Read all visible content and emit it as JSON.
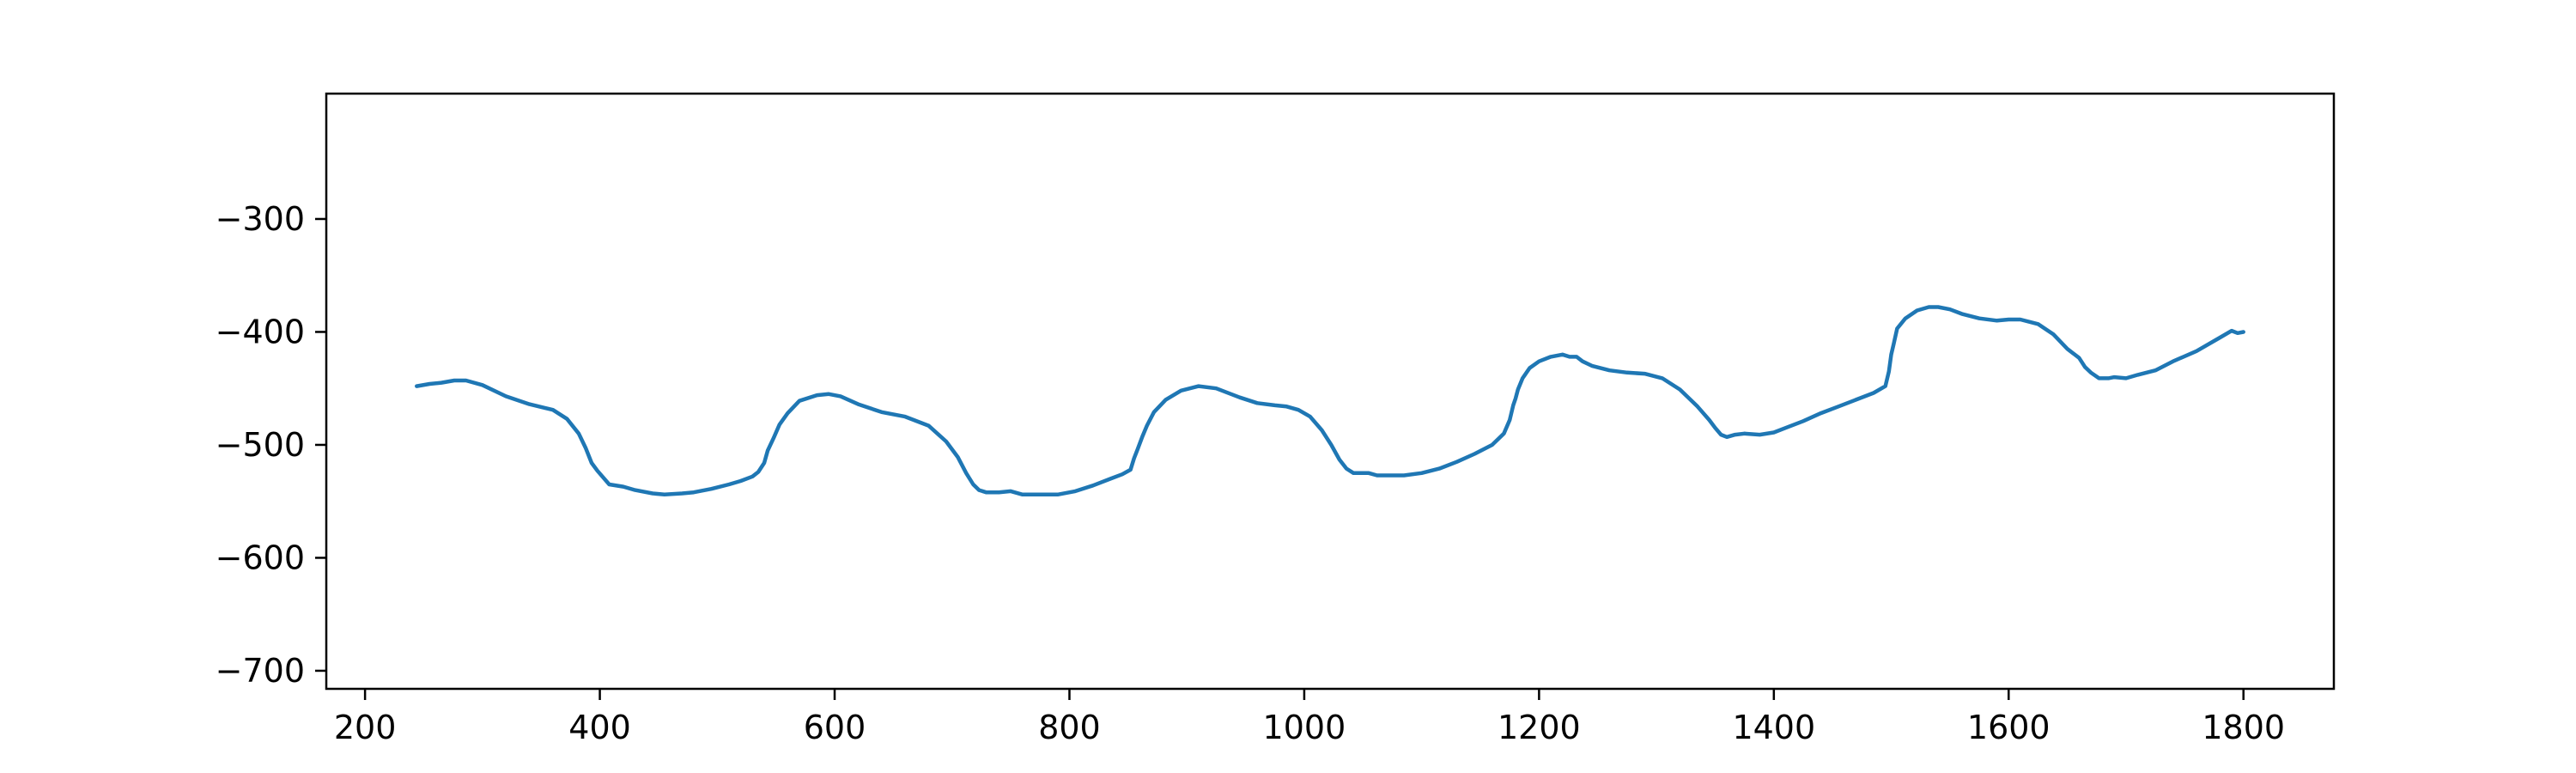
{
  "chart_data": {
    "type": "line",
    "title": "",
    "xlabel": "",
    "ylabel": "",
    "xlim": [
      167,
      1877
    ],
    "ylim": [
      -716,
      -189
    ],
    "xticks": [
      {
        "value": 200,
        "label": "200"
      },
      {
        "value": 400,
        "label": "400"
      },
      {
        "value": 600,
        "label": "600"
      },
      {
        "value": 800,
        "label": "800"
      },
      {
        "value": 1000,
        "label": "1000"
      },
      {
        "value": 1200,
        "label": "1200"
      },
      {
        "value": 1400,
        "label": "1400"
      },
      {
        "value": 1600,
        "label": "1600"
      },
      {
        "value": 1800,
        "label": "1800"
      }
    ],
    "yticks": [
      {
        "value": -300,
        "label": "−300"
      },
      {
        "value": -400,
        "label": "−400"
      },
      {
        "value": -500,
        "label": "−500"
      },
      {
        "value": -600,
        "label": "−600"
      },
      {
        "value": -700,
        "label": "−700"
      }
    ],
    "grid": false,
    "legend": "none",
    "series": [
      {
        "color": "#1f77b4",
        "x": [
          244,
          255,
          265,
          276,
          286,
          300,
          320,
          340,
          360,
          372,
          382,
          388,
          393,
          398,
          408,
          420,
          430,
          445,
          455,
          470,
          480,
          495,
          510,
          520,
          530,
          535,
          540,
          543,
          548,
          553,
          560,
          570,
          585,
          595,
          605,
          620,
          640,
          660,
          680,
          695,
          705,
          712,
          718,
          723,
          729,
          740,
          750,
          760,
          775,
          790,
          805,
          820,
          835,
          845,
          852,
          855,
          858,
          862,
          866,
          872,
          882,
          895,
          910,
          925,
          945,
          960,
          975,
          985,
          995,
          1005,
          1015,
          1023,
          1030,
          1036,
          1042,
          1048,
          1055,
          1062,
          1070,
          1085,
          1100,
          1115,
          1130,
          1145,
          1160,
          1170,
          1175,
          1178,
          1180,
          1182,
          1186,
          1192,
          1200,
          1210,
          1220,
          1226,
          1232,
          1237,
          1245,
          1260,
          1275,
          1290,
          1305,
          1320,
          1335,
          1345,
          1350,
          1355,
          1360,
          1367,
          1375,
          1388,
          1400,
          1410,
          1425,
          1440,
          1455,
          1470,
          1485,
          1495,
          1498,
          1500,
          1502,
          1505,
          1512,
          1522,
          1532,
          1540,
          1550,
          1560,
          1575,
          1590,
          1600,
          1610,
          1625,
          1638,
          1650,
          1660,
          1665,
          1670,
          1677,
          1685,
          1690,
          1700,
          1710,
          1725,
          1740,
          1760,
          1780,
          1790,
          1795,
          1800
        ],
        "y": [
          -448,
          -446,
          -445,
          -443,
          -443,
          -447,
          -457,
          -464,
          -469,
          -477,
          -490,
          -503,
          -516,
          -523,
          -535,
          -537,
          -540,
          -543,
          -544,
          -543,
          -542,
          -539,
          -535,
          -532,
          -528,
          -524,
          -516,
          -505,
          -494,
          -482,
          -472,
          -461,
          -456,
          -455,
          -457,
          -464,
          -471,
          -475,
          -483,
          -497,
          -511,
          -525,
          -535,
          -540,
          -542,
          -542,
          -541,
          -544,
          -544,
          -544,
          -541,
          -536,
          -530,
          -526,
          -522,
          -512,
          -504,
          -493,
          -483,
          -471,
          -460,
          -452,
          -448,
          -450,
          -458,
          -463,
          -465,
          -466,
          -469,
          -475,
          -487,
          -500,
          -513,
          -521,
          -525,
          -525,
          -525,
          -527,
          -527,
          -527,
          -525,
          -521,
          -515,
          -508,
          -500,
          -490,
          -478,
          -465,
          -459,
          -451,
          -441,
          -432,
          -426,
          -422,
          -420,
          -422,
          -422,
          -426,
          -430,
          -434,
          -436,
          -437,
          -441,
          -451,
          -466,
          -478,
          -485,
          -491,
          -493,
          -491,
          -490,
          -491,
          -489,
          -485,
          -479,
          -472,
          -466,
          -460,
          -454,
          -448,
          -435,
          -420,
          -411,
          -397,
          -388,
          -381,
          -378,
          -378,
          -380,
          -384,
          -388,
          -390,
          -389,
          -389,
          -393,
          -402,
          -415,
          -423,
          -431,
          -436,
          -441,
          -441,
          -440,
          -441,
          -438,
          -434,
          -426,
          -417,
          -405,
          -399,
          -401,
          -400
        ]
      }
    ]
  }
}
